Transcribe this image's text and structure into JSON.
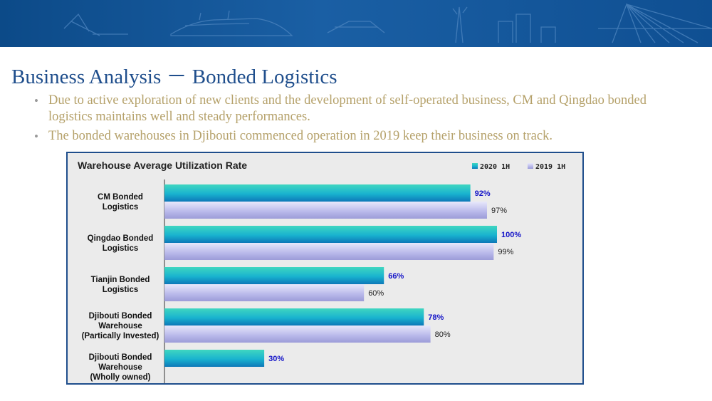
{
  "page": {
    "title": "Business Analysis － Bonded Logistics",
    "bullets": [
      "Due to active exploration of new clients and the development of self-operated business, CM and Qingdao bonded logistics maintains well and steady performances.",
      "The bonded warehouses in Djibouti commenced operation in 2019 keep their business on track."
    ]
  },
  "chart_data": {
    "type": "bar",
    "orientation": "horizontal",
    "title": "Warehouse Average Utilization Rate",
    "categories": [
      [
        "CM Bonded",
        "Logistics"
      ],
      [
        "Qingdao Bonded",
        "Logistics"
      ],
      [
        "Tianjin Bonded",
        "Logistics"
      ],
      [
        "Djibouti Bonded",
        "Warehouse",
        "(Partically Invested)"
      ],
      [
        "Djibouti Bonded",
        "Warehouse",
        "(Wholly owned)"
      ]
    ],
    "series": [
      {
        "name": "2020 1H",
        "values": [
          92,
          100,
          66,
          78,
          30
        ],
        "labels": [
          "92%",
          "100%",
          "66%",
          "78%",
          "30%"
        ],
        "color": "#1fb8c9",
        "label_color": "#1515c8"
      },
      {
        "name": "2019 1H",
        "values": [
          97,
          99,
          60,
          80,
          null
        ],
        "labels": [
          "97%",
          "99%",
          "60%",
          "80%",
          ""
        ],
        "color": "#b7b7e6",
        "label_color": "#222222"
      }
    ],
    "xlim": [
      0,
      100
    ],
    "grid": false,
    "legend_position": "top-right"
  }
}
